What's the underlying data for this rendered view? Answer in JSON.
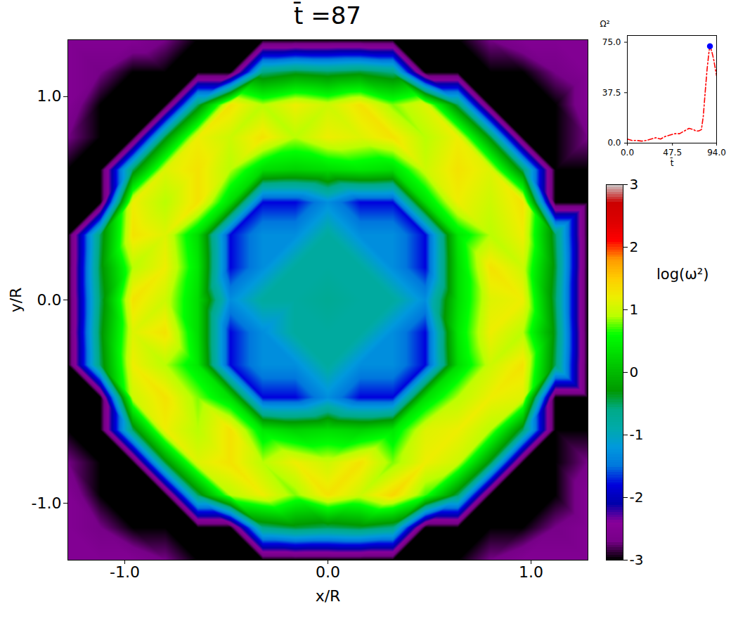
{
  "chart_data": [
    {
      "type": "heatmap",
      "title": "t̄ =87",
      "xlabel": "x/R",
      "ylabel": "y/R",
      "x": [
        -1.28,
        -1.12,
        -0.96,
        -0.8,
        -0.64,
        -0.48,
        -0.32,
        -0.16,
        0,
        0.16,
        0.32,
        0.48,
        0.64,
        0.8,
        0.96,
        1.12,
        1.28
      ],
      "y": [
        -1.28,
        -1.12,
        -0.96,
        -0.8,
        -0.64,
        -0.48,
        -0.32,
        -0.16,
        0,
        0.16,
        0.32,
        0.48,
        0.64,
        0.8,
        0.96,
        1.12,
        1.28
      ],
      "values": [
        [
          -2.5,
          -2.5,
          -2.5,
          -2.7,
          -3,
          -3,
          -3,
          -3,
          -3,
          -3,
          -3,
          -3,
          -3,
          -2.7,
          -2.5,
          -2.5,
          -2.5
        ],
        [
          -2.5,
          -2.7,
          -3,
          -3,
          -3,
          -3,
          -0.6,
          -0.4,
          -0.5,
          -0.4,
          -0.6,
          -3,
          -3,
          -3,
          -3,
          -2.7,
          -2.5
        ],
        [
          -2.5,
          -3,
          -3,
          -3,
          -0.5,
          0.9,
          1.2,
          0.8,
          1.3,
          1.0,
          1.4,
          0.7,
          -0.5,
          -3,
          -3,
          -3,
          -2.5
        ],
        [
          -2.7,
          -3,
          -3,
          -0.4,
          1.1,
          1.3,
          0.9,
          1.2,
          1.0,
          1.3,
          0.8,
          1.2,
          1.0,
          -0.4,
          -3,
          -3,
          -2.7
        ],
        [
          -3,
          -3,
          -0.5,
          1.2,
          0.9,
          1.3,
          0.4,
          0.2,
          0.3,
          0.2,
          0.4,
          1.1,
          1.2,
          0.9,
          -0.5,
          -3,
          -3
        ],
        [
          -3,
          -3,
          1.0,
          1.3,
          0.8,
          0.3,
          -1.8,
          -1.8,
          -1.3,
          -1.8,
          -1.8,
          0.3,
          0.9,
          1.2,
          1.1,
          -3,
          -3
        ],
        [
          -3,
          -0.5,
          1.2,
          0.9,
          0.4,
          -1.8,
          -1.3,
          -1.3,
          -0.8,
          -1.3,
          -1.3,
          -1.8,
          0.3,
          1.0,
          1.3,
          -0.5,
          -3
        ],
        [
          -3,
          -0.4,
          1.1,
          1.3,
          0.3,
          -1.8,
          -1.3,
          -0.8,
          -0.8,
          -0.8,
          -1.3,
          -1.8,
          0.4,
          1.2,
          0.9,
          -0.4,
          -3
        ],
        [
          -3,
          -0.5,
          1.3,
          1.0,
          0.3,
          -1.3,
          -0.8,
          -0.8,
          -0.7,
          -0.8,
          -0.8,
          -1.3,
          0.3,
          1.1,
          1.2,
          -0.5,
          -3
        ],
        [
          -3,
          -0.4,
          0.9,
          1.2,
          0.4,
          -1.8,
          -1.3,
          -0.8,
          -0.8,
          -0.8,
          -1.3,
          -1.8,
          0.3,
          1.3,
          1.0,
          -0.4,
          -3
        ],
        [
          -3,
          -0.5,
          1.3,
          1.1,
          0.3,
          -1.8,
          -1.3,
          -1.3,
          -0.8,
          -1.3,
          -1.3,
          -1.8,
          0.4,
          0.9,
          1.2,
          -0.5,
          -3
        ],
        [
          -3,
          -3,
          1.2,
          0.9,
          1.3,
          0.3,
          -1.8,
          -1.8,
          -1.3,
          -1.8,
          -1.8,
          0.3,
          1.2,
          1.0,
          1.3,
          -3,
          -3
        ],
        [
          -3,
          -3,
          -0.5,
          1.1,
          1.3,
          0.9,
          0.3,
          0.2,
          0.3,
          0.4,
          0.3,
          1.0,
          1.3,
          1.1,
          -0.5,
          -3,
          -3
        ],
        [
          -2.7,
          -3,
          -3,
          -0.4,
          1.2,
          1.0,
          1.3,
          0.9,
          1.2,
          1.1,
          1.3,
          0.9,
          1.2,
          -0.4,
          -3,
          -3,
          -2.7
        ],
        [
          -2.5,
          -3,
          -3,
          -3,
          -0.5,
          1.3,
          0.9,
          1.2,
          1.0,
          1.3,
          0.8,
          1.1,
          -0.5,
          -3,
          -3,
          -3,
          -2.5
        ],
        [
          -2.5,
          -2.7,
          -3,
          -3,
          -3,
          -3,
          -0.6,
          -0.4,
          -0.5,
          -0.4,
          -0.6,
          -3,
          -3,
          -3,
          -3,
          -2.7,
          -2.5
        ],
        [
          -2.5,
          -2.5,
          -2.5,
          -2.7,
          -3,
          -3,
          -3,
          -3,
          -3,
          -3,
          -3,
          -3,
          -3,
          -2.7,
          -2.5,
          -2.5,
          -2.5
        ]
      ],
      "xlim": [
        -1.28,
        1.28
      ],
      "ylim": [
        -1.28,
        1.28
      ],
      "xticks": [
        {
          "value": -1,
          "label": "-1.0"
        },
        {
          "value": 0,
          "label": "0.0"
        },
        {
          "value": 1,
          "label": "1.0"
        }
      ],
      "yticks": [
        {
          "value": -1,
          "label": "-1.0"
        },
        {
          "value": 0,
          "label": "0.0"
        },
        {
          "value": 1,
          "label": "1.0"
        }
      ],
      "colorbar": {
        "label": "log(ω²)",
        "range": [
          -3,
          3
        ],
        "ticks": [
          -3,
          -2,
          -1,
          0,
          1,
          2,
          3
        ]
      }
    },
    {
      "type": "line",
      "xlabel": "t̄",
      "ylabel": "Ω²",
      "x": [
        0,
        5,
        10,
        15,
        20,
        25,
        30,
        35,
        40,
        45,
        50,
        55,
        60,
        65,
        70,
        72,
        75,
        78,
        80,
        82,
        84,
        86,
        87,
        89,
        91,
        92,
        94
      ],
      "values": [
        3,
        2,
        2,
        1.5,
        2,
        3,
        4,
        3,
        5,
        6,
        7,
        7,
        9,
        11,
        10,
        9,
        9,
        10,
        20,
        38,
        55,
        68,
        72,
        68,
        62,
        58,
        50
      ],
      "color": "red",
      "line_style": "dashdot",
      "xlim": [
        0,
        94
      ],
      "ylim": [
        0,
        80
      ],
      "xticks": [
        {
          "value": 0,
          "label": "0.0"
        },
        {
          "value": 47.5,
          "label": "47.5"
        },
        {
          "value": 94,
          "label": "94.0"
        }
      ],
      "yticks": [
        {
          "value": 0,
          "label": "0.0"
        },
        {
          "value": 37.5,
          "label": "37.5"
        },
        {
          "value": 75,
          "label": "75.0"
        }
      ],
      "current_point": {
        "x": 87,
        "y": 72,
        "color": "blue"
      }
    }
  ]
}
